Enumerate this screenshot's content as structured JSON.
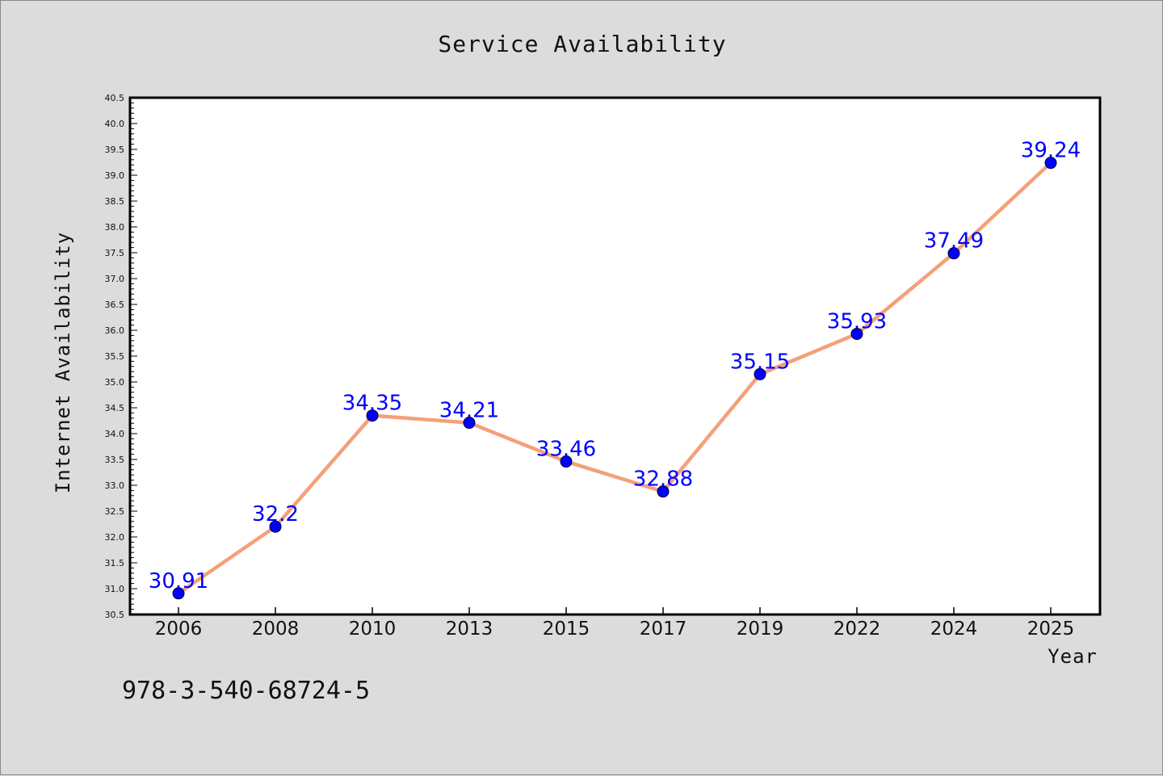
{
  "chart_data": {
    "type": "line",
    "title": "Service Availability",
    "xlabel": "Year",
    "ylabel": "Internet Availability",
    "categories": [
      "2006",
      "2008",
      "2010",
      "2013",
      "2015",
      "2017",
      "2019",
      "2022",
      "2024",
      "2025"
    ],
    "series": [
      {
        "values": [
          30.91,
          32.2,
          34.35,
          34.21,
          33.46,
          32.88,
          35.15,
          35.93,
          37.49,
          39.24
        ],
        "labels": [
          "30.91",
          "32.2",
          "34.35",
          "34.21",
          "33.46",
          "32.88",
          "35.15",
          "35.93",
          "37.49",
          "39.24"
        ],
        "line_color": "#f4a07a",
        "marker_color": "#0000ff"
      }
    ],
    "ylim": [
      30.5,
      40.5
    ],
    "yticks": [
      "30.5",
      "31.0",
      "31.5",
      "32.0",
      "32.5",
      "33.0",
      "33.5",
      "34.0",
      "34.5",
      "35.0",
      "35.5",
      "36.0",
      "36.5",
      "37.0",
      "37.5",
      "38.0",
      "38.5",
      "39.0",
      "39.5",
      "40.0",
      "40.5"
    ],
    "grid": false,
    "legend": "none"
  },
  "footer_text": "978-3-540-68724-5",
  "colors": {
    "background": "#dcdcdc",
    "plot_background": "#ffffff"
  }
}
